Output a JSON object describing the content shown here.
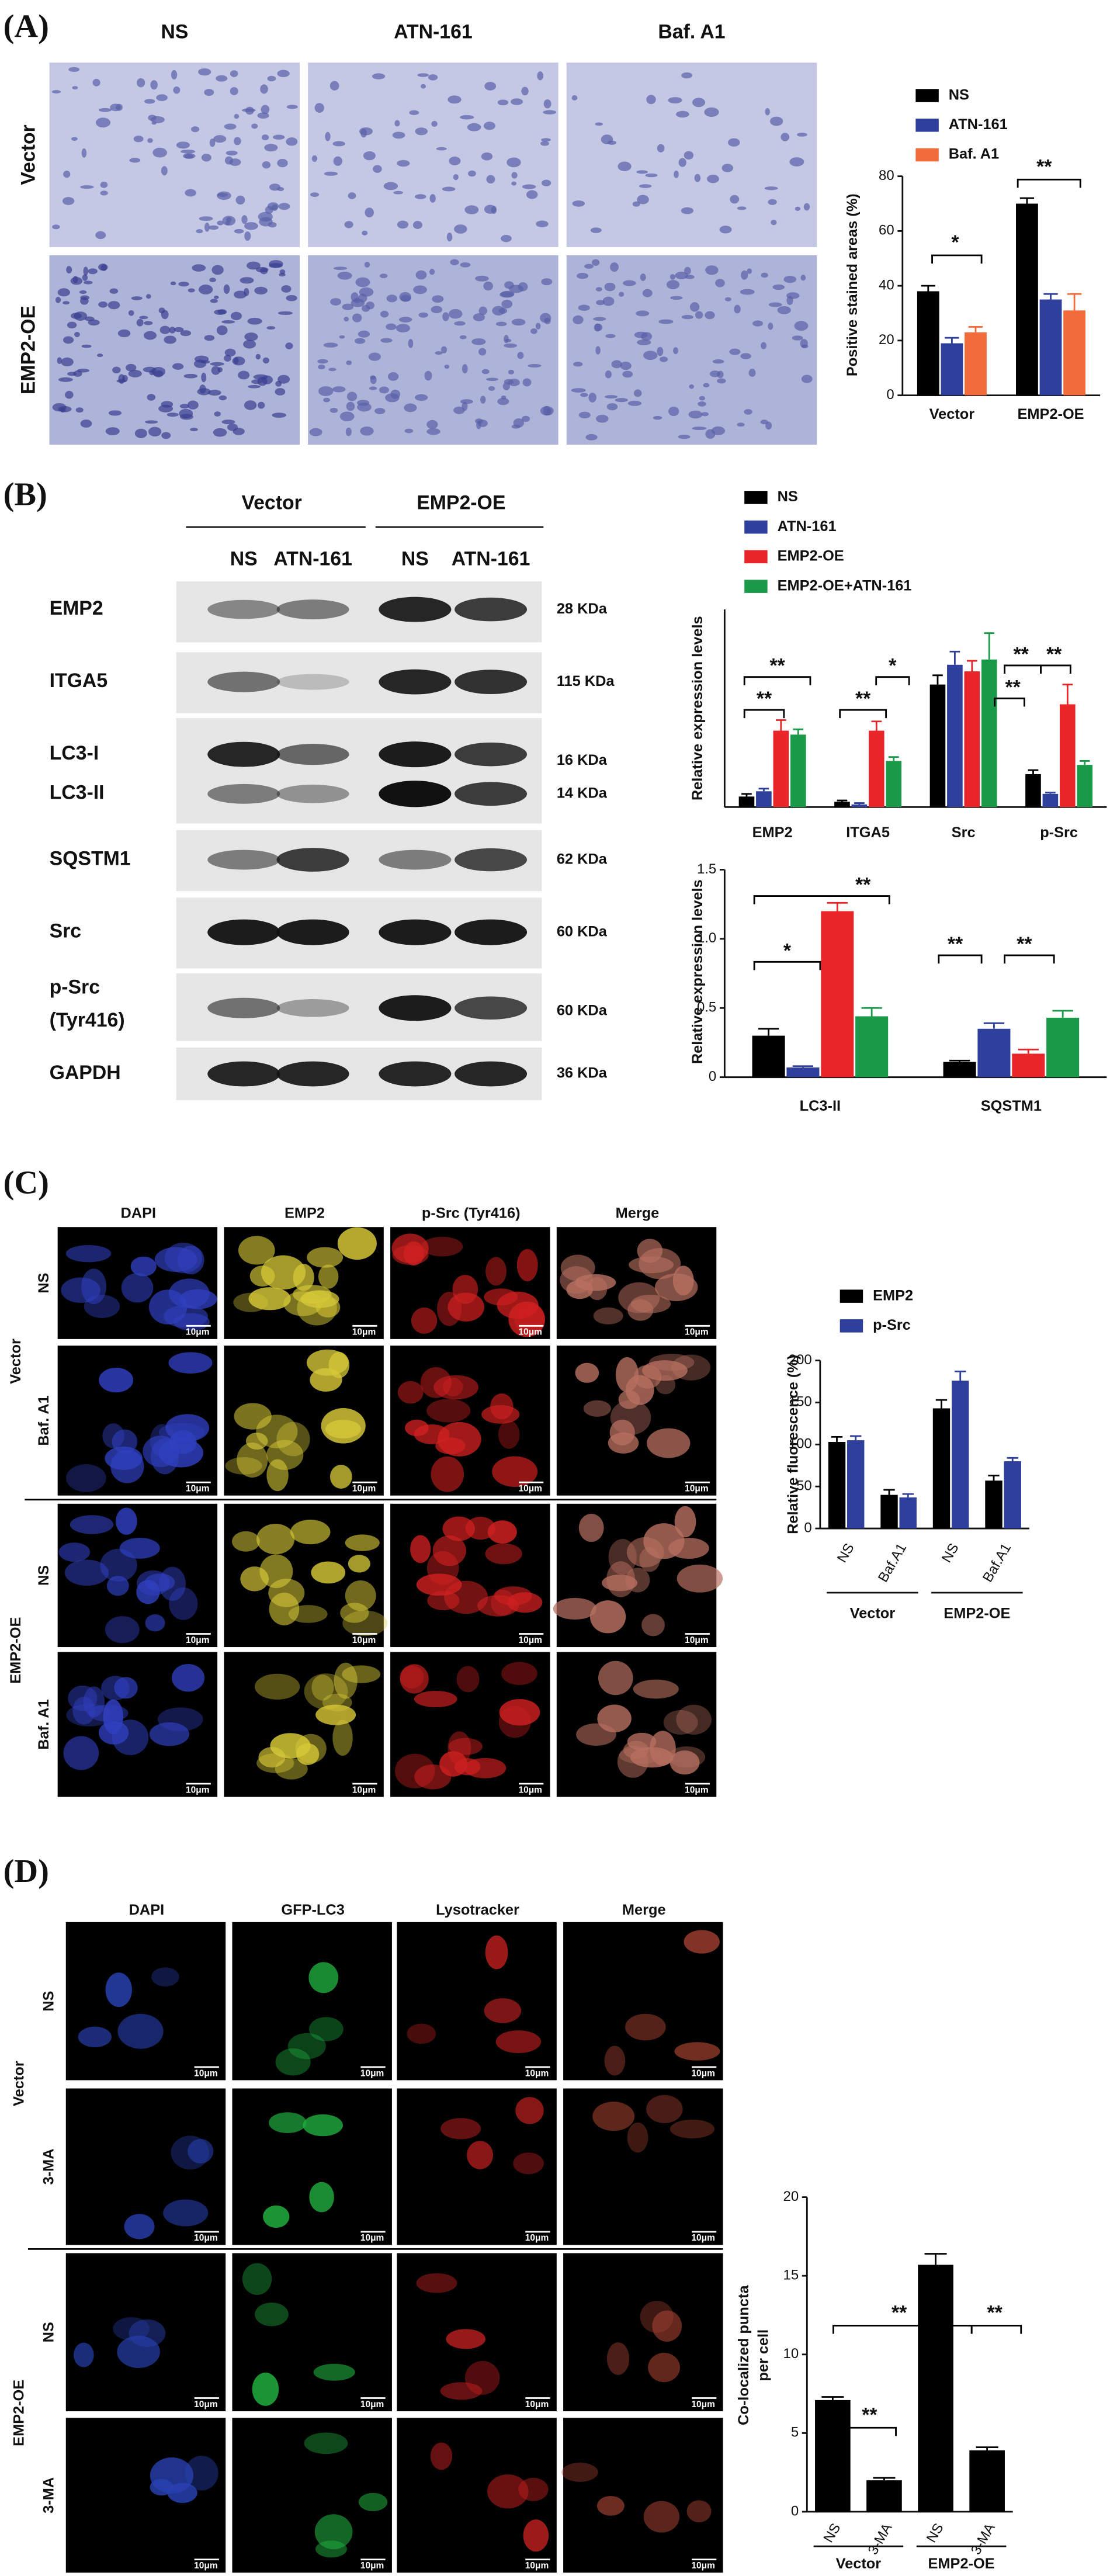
{
  "panel_labels": [
    "(A)",
    "(B)",
    "(C)",
    "(D)"
  ],
  "panel_a": {
    "columns": [
      "NS",
      "ATN-161",
      "Baf. A1"
    ],
    "rows": [
      "Vector",
      "EMP2-OE"
    ]
  },
  "panel_b": {
    "groups": [
      "Vector",
      "EMP2-OE"
    ],
    "lanes": [
      "NS",
      "ATN-161",
      "NS",
      "ATN-161"
    ],
    "proteins": [
      "EMP2",
      "ITGA5",
      "LC3-I",
      "LC3-II",
      "SQSTM1",
      "Src",
      "p-Src",
      "(Tyr416)",
      "GAPDH"
    ],
    "weights": [
      "28 KDa",
      "115 KDa",
      "16 KDa",
      "14 KDa",
      "62 KDa",
      "60 KDa",
      "60 KDa",
      "36 KDa"
    ]
  },
  "panel_c": {
    "columns": [
      "DAPI",
      "EMP2",
      "p-Src (Tyr416)",
      "Merge"
    ],
    "conditions": [
      "NS",
      "Baf. A1",
      "NS",
      "Baf. A1"
    ],
    "groups": [
      "Vector",
      "EMP2-OE"
    ],
    "scale_bar": "10μm"
  },
  "panel_d": {
    "columns": [
      "DAPI",
      "GFP-LC3",
      "Lysotracker",
      "Merge"
    ],
    "conditions": [
      "NS",
      "3-MA",
      "NS",
      "3-MA"
    ],
    "groups": [
      "Vector",
      "EMP2-OE"
    ],
    "scale_bar": "10μm"
  },
  "chart_data": [
    {
      "type": "bar",
      "ylabel": "Positive stained areas (%)",
      "categories": [
        "Vector",
        "EMP2-OE"
      ],
      "series": [
        {
          "name": "NS",
          "color": "#000000",
          "values": [
            38,
            70
          ],
          "errors": [
            2,
            2
          ]
        },
        {
          "name": "ATN-161",
          "color": "#2e3f9c",
          "values": [
            19,
            35
          ],
          "errors": [
            2,
            2
          ]
        },
        {
          "name": "Baf. A1",
          "color": "#f26b3a",
          "values": [
            23,
            31
          ],
          "errors": [
            2,
            6
          ]
        }
      ],
      "ylim": [
        0,
        80
      ],
      "yticks": [
        0,
        20,
        40,
        60,
        80
      ],
      "legend": true,
      "annotations": [
        "*",
        "**"
      ]
    },
    {
      "type": "bar",
      "ylabel": "Relative expression levels",
      "categories": [
        "EMP2",
        "ITGA5",
        "Src",
        "p-Src"
      ],
      "series": [
        {
          "name": "NS",
          "color": "#000000",
          "values": [
            0.08,
            0.04,
            0.93,
            0.25
          ],
          "errors": [
            0.02,
            0.01,
            0.07,
            0.03
          ]
        },
        {
          "name": "ATN-161",
          "color": "#2e3f9c",
          "values": [
            0.12,
            0.02,
            1.08,
            0.1
          ],
          "errors": [
            0.02,
            0.01,
            0.1,
            0.01
          ]
        },
        {
          "name": "EMP2-OE",
          "color": "#e8262a",
          "values": [
            0.58,
            0.58,
            1.03,
            0.78
          ],
          "errors": [
            0.08,
            0.07,
            0.08,
            0.15
          ]
        },
        {
          "name": "EMP2-OE+ATN-161",
          "color": "#1a9a48",
          "values": [
            0.55,
            0.35,
            1.12,
            0.32
          ],
          "errors": [
            0.04,
            0.03,
            0.2,
            0.03
          ]
        }
      ],
      "ylim": [
        0,
        1.5
      ],
      "legend": true,
      "annotations": [
        "**",
        "**",
        "**",
        "*",
        "**",
        "**",
        "**"
      ]
    },
    {
      "type": "bar",
      "ylabel": "Relative expression levels",
      "categories": [
        "LC3-II",
        "SQSTM1"
      ],
      "series": [
        {
          "color": "#000000",
          "values": [
            0.3,
            0.11
          ],
          "errors": [
            0.05,
            0.01
          ]
        },
        {
          "color": "#2e3f9c",
          "values": [
            0.07,
            0.35
          ],
          "errors": [
            0.01,
            0.04
          ]
        },
        {
          "color": "#e8262a",
          "values": [
            1.2,
            0.17
          ],
          "errors": [
            0.06,
            0.03
          ]
        },
        {
          "color": "#1a9a48",
          "values": [
            0.44,
            0.43
          ],
          "errors": [
            0.06,
            0.05
          ]
        }
      ],
      "ylim": [
        0,
        1.5
      ],
      "yticks": [
        0,
        0.5,
        {
          "value": 1,
          "label": "1.0"
        },
        1.5
      ],
      "legend": false,
      "annotations": [
        "*",
        "**",
        "**",
        "**"
      ]
    },
    {
      "type": "bar",
      "ylabel": "Relative fluorescence (%)",
      "categories": [
        "NS",
        "Baf.A1",
        "NS",
        "Baf.A1"
      ],
      "groups": [
        "Vector",
        "EMP2-OE"
      ],
      "series": [
        {
          "name": "EMP2",
          "color": "#000000",
          "values": [
            103,
            40,
            143,
            57
          ],
          "errors": [
            6,
            6,
            10,
            6
          ]
        },
        {
          "name": "p-Src",
          "color": "#2e3f9c",
          "values": [
            105,
            37,
            176,
            80
          ],
          "errors": [
            5,
            4,
            11,
            4
          ]
        }
      ],
      "ylim": [
        0,
        200
      ],
      "yticks": [
        0,
        50,
        100,
        150,
        200
      ],
      "legend": true,
      "annotations": []
    },
    {
      "type": "bar",
      "ylabel": [
        "Co-localized puncta",
        "per cell"
      ],
      "categories": [
        "NS",
        "3-MA",
        "NS",
        "3-MA"
      ],
      "groups": [
        "Vector",
        "EMP2-OE"
      ],
      "series": [
        {
          "color": "#000000",
          "values": [
            7.1,
            2,
            15.7,
            3.9
          ],
          "errors": [
            0.2,
            0.15,
            0.7,
            0.2
          ]
        }
      ],
      "ylim": [
        0,
        20
      ],
      "yticks": [
        0,
        5,
        10,
        15,
        20
      ],
      "legend": false,
      "annotations": [
        "**",
        "**",
        "**"
      ]
    }
  ]
}
